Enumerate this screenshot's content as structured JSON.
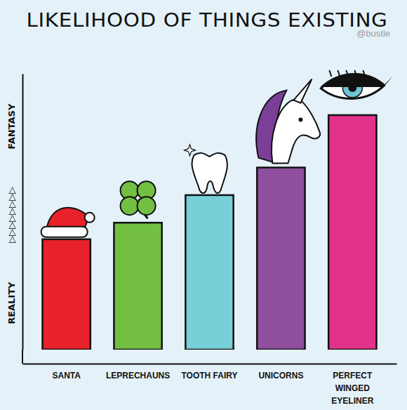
{
  "chart_data": {
    "type": "bar",
    "title": "LIKELIHOOD OF THINGS EXISTING",
    "annotations": [
      "@bustle"
    ],
    "categories": [
      "SANTA",
      "LEPRECHAUNS",
      "TOOTH FAIRY",
      "UNICORNS",
      "PERFECT WINGED EYELINER"
    ],
    "values": [
      40,
      46,
      56,
      66,
      85
    ],
    "colors": [
      "#e8212b",
      "#72bf44",
      "#79cfd8",
      "#8e4f9f",
      "#e2338a"
    ],
    "ylim": [
      0,
      100
    ],
    "yticks": [
      {
        "value": 17,
        "label": "REALITY"
      },
      {
        "value": 49,
        "label": "▷▷▷▷▷▷▷▷"
      },
      {
        "value": 81,
        "label": "FANTASY"
      }
    ],
    "grid": false
  }
}
